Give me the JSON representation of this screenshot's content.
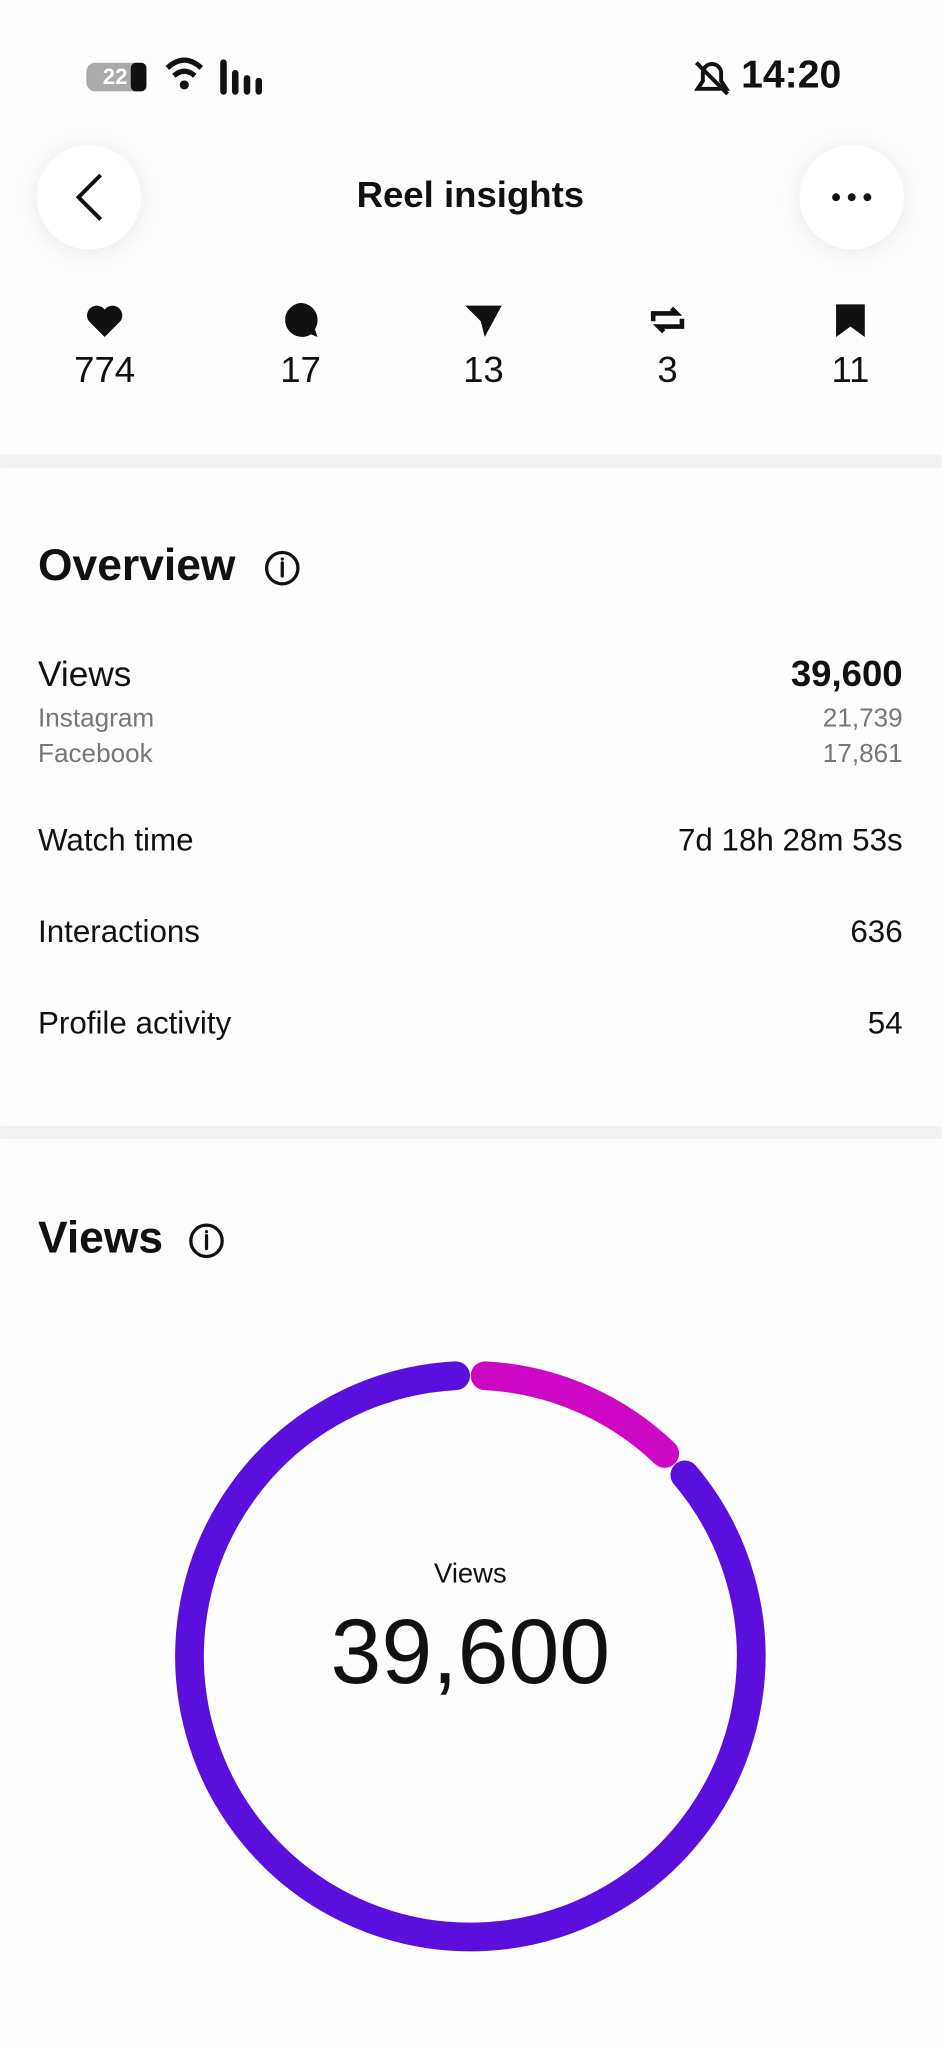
{
  "status_bar": {
    "battery": "22",
    "time": "14:20"
  },
  "header": {
    "title": "Reel insights"
  },
  "stats": [
    "774",
    "17",
    "13",
    "3",
    "11"
  ],
  "overview": {
    "title": "Overview",
    "views": {
      "label": "Views",
      "value": "39,600",
      "sources": [
        {
          "label": "Instagram",
          "value": "21,739"
        },
        {
          "label": "Facebook",
          "value": "17,861"
        }
      ]
    },
    "rows": [
      {
        "label": "Watch time",
        "value": "7d 18h 28m 53s"
      },
      {
        "label": "Interactions",
        "value": "636"
      },
      {
        "label": "Profile activity",
        "value": "54"
      }
    ]
  },
  "views_section": {
    "title": "Views",
    "center_label": "Views",
    "center_value": "39,600"
  },
  "chart_data": {
    "type": "donut",
    "values": [
      13,
      87
    ],
    "colors": [
      "#cc08c4",
      "#5a0fdc"
    ]
  }
}
